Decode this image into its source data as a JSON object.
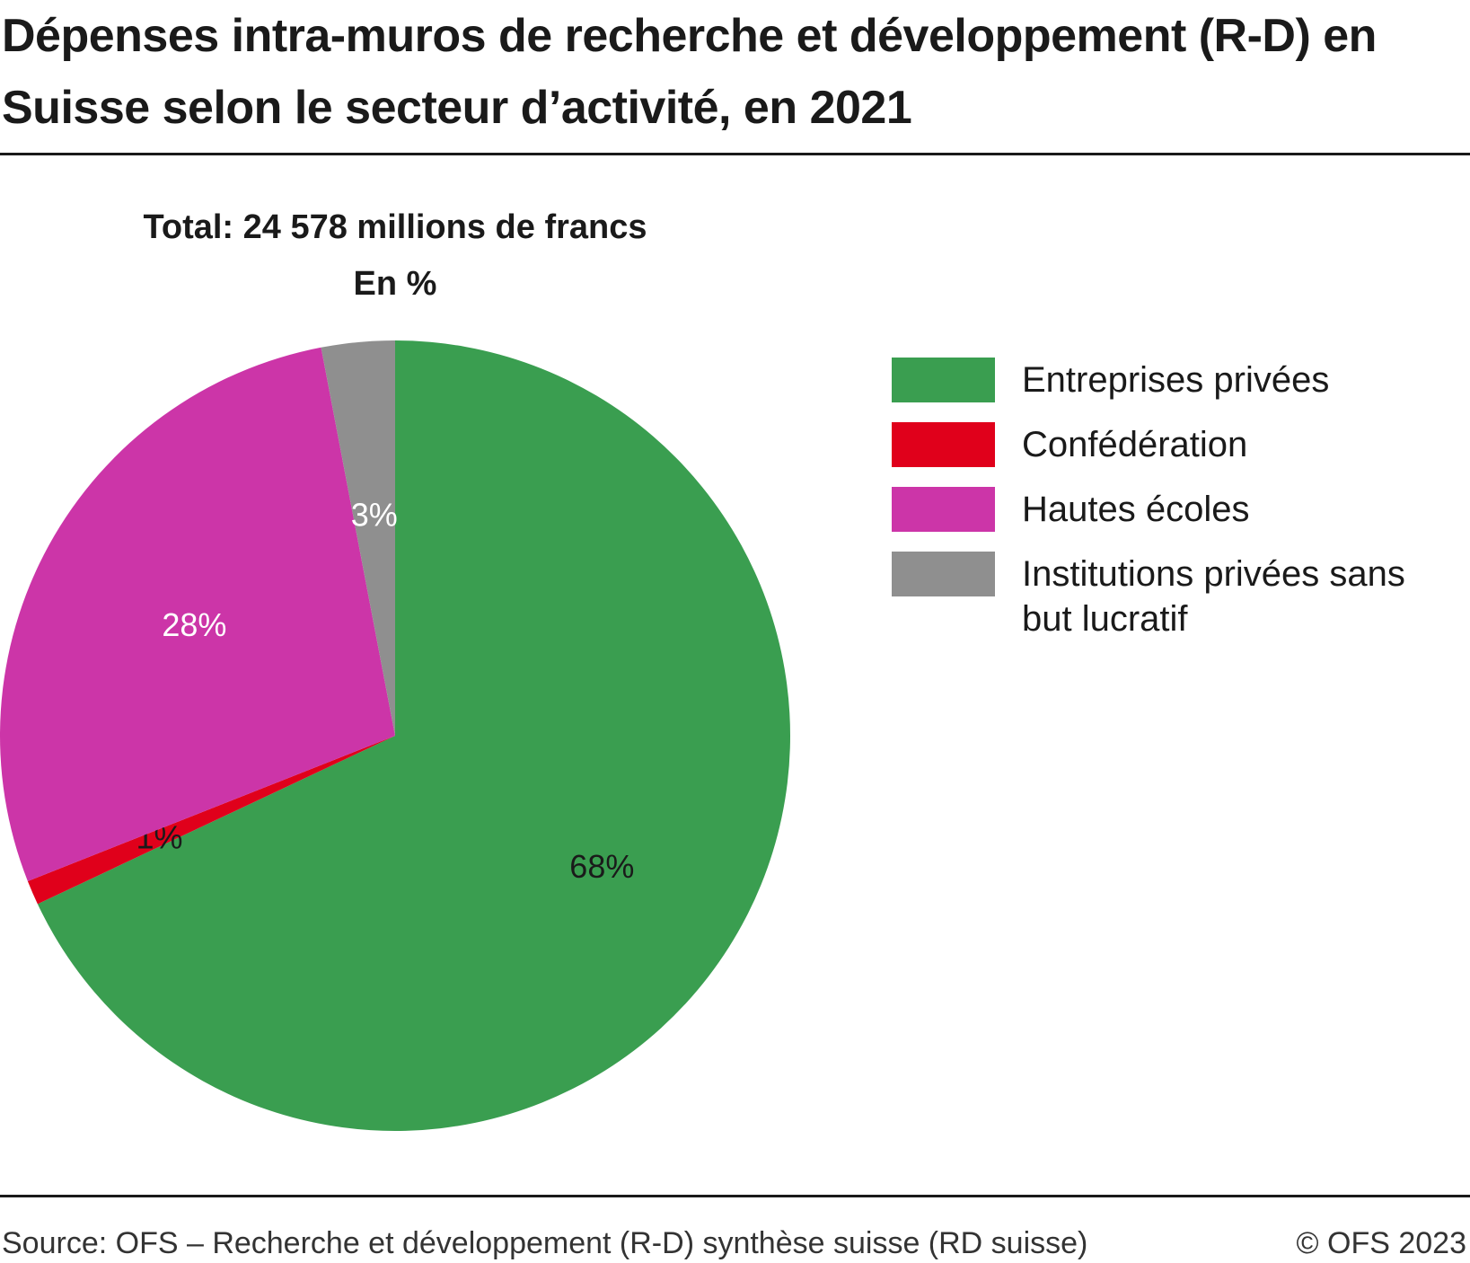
{
  "title": "Dépenses intra-muros de recherche et développement (R-D) en Suisse selon le secteur d’activité, en 2021",
  "footer": {
    "source": "Source: OFS – Recherche et développement (R-D) synthèse suisse (RD suisse)",
    "copyright": "© OFS 2023"
  },
  "chart_data": {
    "type": "pie",
    "title": "Total: 24 578 millions de francs",
    "subtitle": "En %",
    "start_angle": "12 o'clock, clockwise",
    "legend_position": "right",
    "slices": [
      {
        "name": "Entreprises privées",
        "value": 68,
        "label": "68%",
        "color": "#3a9e50",
        "label_color": "#1a1a1a"
      },
      {
        "name": "Confédération",
        "value": 1,
        "label": "1%",
        "color": "#e0001b",
        "label_color": "#1a1a1a"
      },
      {
        "name": "Hautes écoles",
        "value": 28,
        "label": "28%",
        "color": "#cc35a8",
        "label_color": "#ffffff"
      },
      {
        "name": "Institutions privées sans but lucratif",
        "value": 3,
        "label": "3%",
        "color": "#8f8f8f",
        "label_color": "#ffffff"
      }
    ]
  }
}
